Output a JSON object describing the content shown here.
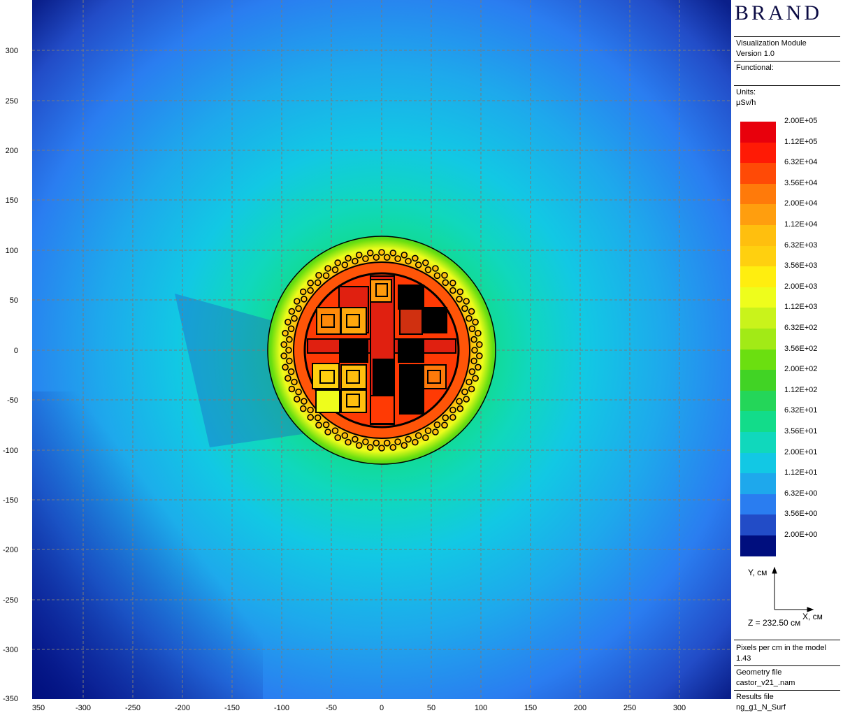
{
  "brand": {
    "logo_text": "BRAND"
  },
  "module": {
    "name": "Visualization Module",
    "version": "Version 1.0"
  },
  "functional": {
    "label": "Functional:",
    "value": ""
  },
  "units": {
    "label": "Units:",
    "value": "µSv/h"
  },
  "legend": {
    "labels": [
      "2.00E+05",
      "1.12E+05",
      "6.32E+04",
      "3.56E+04",
      "2.00E+04",
      "1.12E+04",
      "6.32E+03",
      "3.56E+03",
      "2.00E+03",
      "1.12E+03",
      "6.32E+02",
      "3.56E+02",
      "2.00E+02",
      "1.12E+02",
      "6.32E+01",
      "3.56E+01",
      "2.00E+01",
      "1.12E+01",
      "6.32E+00",
      "3.56E+00",
      "2.00E+00"
    ],
    "colors": [
      "#e8000c",
      "#ff1a05",
      "#ff4a06",
      "#ff7a0a",
      "#ff9e0e",
      "#ffbf0e",
      "#ffd00f",
      "#ffee0f",
      "#eefd1c",
      "#c9f31b",
      "#a2ea16",
      "#6bdf10",
      "#41d325",
      "#24d659",
      "#12dc8a",
      "#10d8bc",
      "#12c8e4",
      "#1ea8ec",
      "#2a7df0",
      "#224cc7",
      "#000e7e"
    ]
  },
  "axis_indicator": {
    "y_label": "Y, см",
    "x_label": "X, см",
    "z_text": "Z = 232.50 см"
  },
  "pixels": {
    "label": "Pixels per cm in the model",
    "value": "1.43"
  },
  "geometry": {
    "label": "Geometry file",
    "value": "castor_v21_.nam"
  },
  "results": {
    "label": "Results file",
    "value": "ng_g1_N_Surf"
  },
  "plot": {
    "x_ticks": [
      "350",
      "-300",
      "-250",
      "-200",
      "-150",
      "-100",
      "-50",
      "0",
      "50",
      "100",
      "150",
      "200",
      "250",
      "300"
    ],
    "y_ticks": [
      "300",
      "250",
      "200",
      "150",
      "100",
      "50",
      "0",
      "-50",
      "-100",
      "-150",
      "-200",
      "-250",
      "-300",
      "-350"
    ]
  }
}
